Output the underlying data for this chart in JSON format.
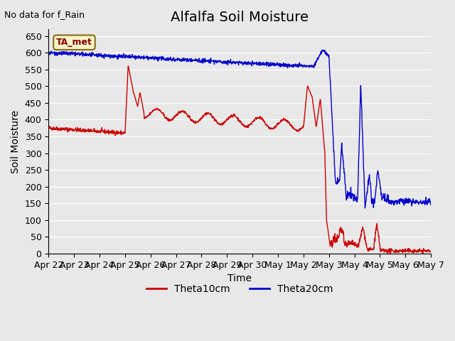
{
  "title": "Alfalfa Soil Moisture",
  "xlabel": "Time",
  "ylabel": "Soil Moisture",
  "top_left_text": "No data for f_Rain",
  "legend_label": "TA_met",
  "ylim": [
    0,
    670
  ],
  "yticks": [
    0,
    50,
    100,
    150,
    200,
    250,
    300,
    350,
    400,
    450,
    500,
    550,
    600,
    650
  ],
  "line1_color": "#cc0000",
  "line2_color": "#0000cc",
  "line1_label": "Theta10cm",
  "line2_label": "Theta20cm",
  "bg_color": "#e8e8e8",
  "plot_bg_color": "#e8e8e8",
  "grid_color": "#ffffff",
  "title_fontsize": 14,
  "axis_label_fontsize": 10,
  "tick_fontsize": 9
}
